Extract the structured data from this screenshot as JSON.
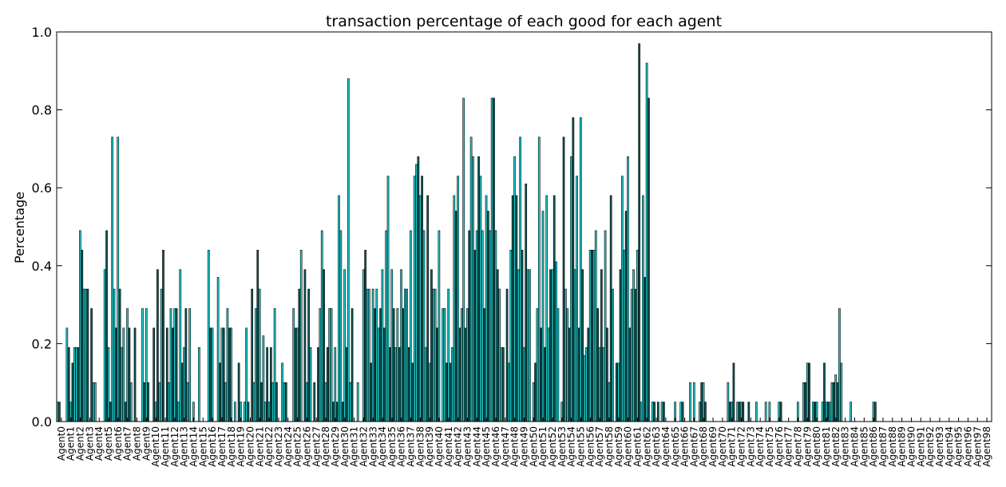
{
  "chart_data": {
    "type": "bar",
    "title": "transaction percentage of each good for each agent",
    "xlabel": "",
    "ylabel": "Percentage",
    "ylim": [
      0.0,
      1.0
    ],
    "yticks": [
      "0.0",
      "0.2",
      "0.4",
      "0.6",
      "0.8",
      "1.0"
    ],
    "grid": false,
    "colors": {
      "bar_a": "#1fd1d1",
      "bar_b": "#0e5a5a",
      "edge": "#000000"
    },
    "categories": [
      "Agent0",
      "Agent1",
      "Agent2",
      "Agent3",
      "Agent4",
      "Agent5",
      "Agent6",
      "Agent7",
      "Agent8",
      "Agent9",
      "Agent10",
      "Agent11",
      "Agent12",
      "Agent13",
      "Agent14",
      "Agent15",
      "Agent16",
      "Agent17",
      "Agent18",
      "Agent19",
      "Agent20",
      "Agent21",
      "Agent22",
      "Agent23",
      "Agent24",
      "Agent25",
      "Agent26",
      "Agent27",
      "Agent28",
      "Agent29",
      "Agent30",
      "Agent31",
      "Agent32",
      "Agent33",
      "Agent34",
      "Agent35",
      "Agent36",
      "Agent37",
      "Agent38",
      "Agent39",
      "Agent40",
      "Agent41",
      "Agent42",
      "Agent43",
      "Agent44",
      "Agent45",
      "Agent46",
      "Agent47",
      "Agent48",
      "Agent49",
      "Agent50",
      "Agent51",
      "Agent52",
      "Agent53",
      "Agent54",
      "Agent55",
      "Agent56",
      "Agent57",
      "Agent58",
      "Agent59",
      "Agent60",
      "Agent61",
      "Agent62",
      "Agent63",
      "Agent64",
      "Agent65",
      "Agent66",
      "Agent67",
      "Agent68",
      "Agent69",
      "Agent70",
      "Agent71",
      "Agent72",
      "Agent73",
      "Agent74",
      "Agent75",
      "Agent76",
      "Agent77",
      "Agent78",
      "Agent79",
      "Agent80",
      "Agent81",
      "Agent82",
      "Agent83",
      "Agent84",
      "Agent85",
      "Agent86",
      "Agent87",
      "Agent88",
      "Agent89",
      "Agent90",
      "Agent91",
      "Agent92",
      "Agent93",
      "Agent94",
      "Agent95",
      "Agent96",
      "Agent97",
      "Agent98"
    ],
    "values": [
      [
        0.05,
        0.05,
        0.0,
        0.0,
        0.0
      ],
      [
        0.24,
        0.19,
        0.05,
        0.15,
        0.19
      ],
      [
        0.19,
        0.19,
        0.49,
        0.44,
        0.34
      ],
      [
        0.34,
        0.34,
        0.0,
        0.29,
        0.1
      ],
      [
        0.1,
        0.0,
        0.0,
        0.0,
        0.0
      ],
      [
        0.39,
        0.49,
        0.19,
        0.05,
        0.73
      ],
      [
        0.34,
        0.24,
        0.73,
        0.34,
        0.19
      ],
      [
        0.24,
        0.05,
        0.29,
        0.24,
        0.1
      ],
      [
        0.0,
        0.24,
        0.0,
        0.0,
        0.0
      ],
      [
        0.29,
        0.1,
        0.29,
        0.1,
        0.0
      ],
      [
        0.0,
        0.24,
        0.05,
        0.39,
        0.1
      ],
      [
        0.34,
        0.44,
        0.0,
        0.24,
        0.1
      ],
      [
        0.29,
        0.24,
        0.29,
        0.29,
        0.05
      ],
      [
        0.39,
        0.15,
        0.19,
        0.29,
        0.1
      ],
      [
        0.29,
        0.0,
        0.05,
        0.0,
        0.0
      ],
      [
        0.19,
        0.0,
        0.0,
        0.0,
        0.0
      ],
      [
        0.44,
        0.24,
        0.24,
        0.0,
        0.0
      ],
      [
        0.37,
        0.15,
        0.24,
        0.24,
        0.1
      ],
      [
        0.29,
        0.24,
        0.24,
        0.0,
        0.05
      ],
      [
        0.0,
        0.15,
        0.05,
        0.0,
        0.05
      ],
      [
        0.24,
        0.05,
        0.0,
        0.34,
        0.1
      ],
      [
        0.29,
        0.44,
        0.34,
        0.1,
        0.22
      ],
      [
        0.05,
        0.19,
        0.05,
        0.19,
        0.1
      ],
      [
        0.29,
        0.1,
        0.0,
        0.0,
        0.15
      ],
      [
        0.1,
        0.1,
        0.0,
        0.0,
        0.0
      ],
      [
        0.29,
        0.24,
        0.24,
        0.34,
        0.44
      ],
      [
        0.0,
        0.39,
        0.1,
        0.34,
        0.19
      ],
      [
        0.0,
        0.1,
        0.0,
        0.19,
        0.29
      ],
      [
        0.49,
        0.39,
        0.1,
        0.19,
        0.29
      ],
      [
        0.29,
        0.05,
        0.19,
        0.05,
        0.58
      ],
      [
        0.49,
        0.05,
        0.39,
        0.19,
        0.88
      ],
      [
        0.1,
        0.29,
        0.0,
        0.0,
        0.1
      ],
      [
        0.0,
        0.0,
        0.39,
        0.44,
        0.34
      ],
      [
        0.34,
        0.15,
        0.34,
        0.29,
        0.34
      ],
      [
        0.24,
        0.29,
        0.39,
        0.24,
        0.49
      ],
      [
        0.63,
        0.19,
        0.39,
        0.29,
        0.19
      ],
      [
        0.29,
        0.19,
        0.39,
        0.29,
        0.34
      ],
      [
        0.34,
        0.19,
        0.49,
        0.15,
        0.63
      ],
      [
        0.66,
        0.68,
        0.58,
        0.63,
        0.49
      ],
      [
        0.19,
        0.58,
        0.15,
        0.39,
        0.34
      ],
      [
        0.34,
        0.24,
        0.49,
        0.0,
        0.29
      ],
      [
        0.29,
        0.15,
        0.34,
        0.15,
        0.19
      ],
      [
        0.58,
        0.54,
        0.63,
        0.24,
        0.29
      ],
      [
        0.83,
        0.24,
        0.29,
        0.49,
        0.73
      ],
      [
        0.68,
        0.44,
        0.49,
        0.68,
        0.63
      ],
      [
        0.49,
        0.29,
        0.58,
        0.54,
        0.49
      ],
      [
        0.83,
        0.83,
        0.49,
        0.39,
        0.34
      ],
      [
        0.19,
        0.19,
        0.0,
        0.34,
        0.15
      ],
      [
        0.44,
        0.58,
        0.68,
        0.58,
        0.39
      ],
      [
        0.73,
        0.44,
        0.19,
        0.61,
        0.39
      ],
      [
        0.39,
        0.0,
        0.1,
        0.15,
        0.29
      ],
      [
        0.73,
        0.24,
        0.54,
        0.19,
        0.58
      ],
      [
        0.24,
        0.39,
        0.39,
        0.58,
        0.41
      ],
      [
        0.29,
        0.0,
        0.05,
        0.73,
        0.34
      ],
      [
        0.29,
        0.24,
        0.68,
        0.78,
        0.39
      ],
      [
        0.63,
        0.24,
        0.78,
        0.39,
        0.17
      ],
      [
        0.19,
        0.24,
        0.44,
        0.44,
        0.44
      ],
      [
        0.49,
        0.29,
        0.19,
        0.39,
        0.19
      ],
      [
        0.49,
        0.24,
        0.1,
        0.58,
        0.34
      ],
      [
        0.0,
        0.15,
        0.15,
        0.39,
        0.63
      ],
      [
        0.44,
        0.54,
        0.68,
        0.24,
        0.34
      ],
      [
        0.39,
        0.34,
        0.44,
        0.97,
        0.05
      ],
      [
        0.58,
        0.37,
        0.92,
        0.83,
        0.0
      ],
      [
        0.05,
        0.05,
        0.0,
        0.05,
        0.0
      ],
      [
        0.05,
        0.05,
        0.0,
        0.0,
        0.0
      ],
      [
        0.0,
        0.0,
        0.05,
        0.0,
        0.0
      ],
      [
        0.05,
        0.05,
        0.0,
        0.0,
        0.0
      ],
      [
        0.1,
        0.0,
        0.1,
        0.0,
        0.0
      ],
      [
        0.05,
        0.1,
        0.1,
        0.05,
        0.0
      ],
      [
        0.0,
        0.0,
        0.0,
        0.0,
        0.0
      ],
      [
        0.0,
        0.0,
        0.0,
        0.0,
        0.0
      ],
      [
        0.1,
        0.05,
        0.05,
        0.15,
        0.0
      ],
      [
        0.05,
        0.05,
        0.05,
        0.05,
        0.0
      ],
      [
        0.0,
        0.05,
        0.0,
        0.0,
        0.0
      ],
      [
        0.05,
        0.0,
        0.0,
        0.0,
        0.0
      ],
      [
        0.05,
        0.0,
        0.05,
        0.0,
        0.0
      ],
      [
        0.0,
        0.0,
        0.05,
        0.05,
        0.0
      ],
      [
        0.0,
        0.0,
        0.0,
        0.0,
        0.0
      ],
      [
        0.0,
        0.0,
        0.05,
        0.0,
        0.0
      ],
      [
        0.1,
        0.1,
        0.15,
        0.15,
        0.0
      ],
      [
        0.05,
        0.05,
        0.05,
        0.0,
        0.0
      ],
      [
        0.05,
        0.15,
        0.05,
        0.05,
        0.05
      ],
      [
        0.1,
        0.1,
        0.12,
        0.1,
        0.29
      ],
      [
        0.15,
        0.0,
        0.0,
        0.0,
        0.0
      ],
      [
        0.05,
        0.0,
        0.0,
        0.0,
        0.0
      ],
      [
        0.0,
        0.0,
        0.0,
        0.0,
        0.0
      ],
      [
        0.0,
        0.0,
        0.05,
        0.05,
        0.0
      ],
      [
        0.0,
        0.0,
        0.0,
        0.0,
        0.0
      ],
      [
        0.0,
        0.0,
        0.0,
        0.0,
        0.0
      ],
      [
        0.0,
        0.0,
        0.0,
        0.0,
        0.0
      ],
      [
        0.0,
        0.0,
        0.0,
        0.0,
        0.0
      ],
      [
        0.0,
        0.0,
        0.0,
        0.0,
        0.0
      ],
      [
        0.0,
        0.0,
        0.0,
        0.0,
        0.0
      ],
      [
        0.0,
        0.0,
        0.0,
        0.0,
        0.0
      ],
      [
        0.0,
        0.0,
        0.0,
        0.0,
        0.0
      ],
      [
        0.0,
        0.0,
        0.0,
        0.0,
        0.0
      ],
      [
        0.0,
        0.0,
        0.0,
        0.0,
        0.0
      ],
      [
        0.0,
        0.0,
        0.0,
        0.0,
        0.0
      ],
      [
        0.0,
        0.0,
        0.0,
        0.0,
        0.0
      ]
    ]
  }
}
